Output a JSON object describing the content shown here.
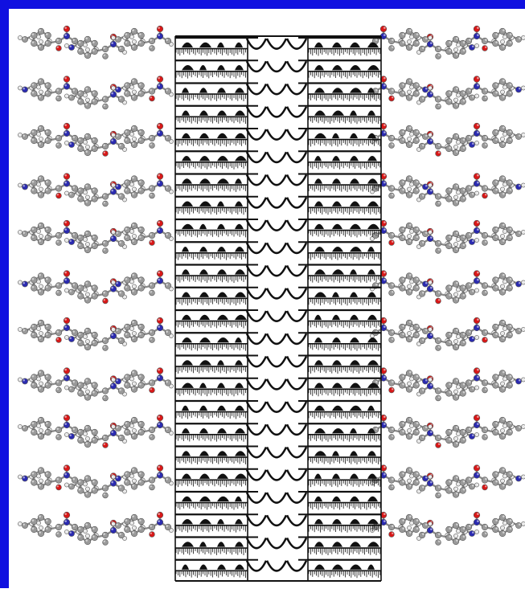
{
  "figure": {
    "frame_color": "#1010e0",
    "colors": {
      "carbon": "#9a9a9a",
      "carbon_dark": "#4a4a4a",
      "hydrogen": "#e8e8e8",
      "nitrogen": "#2b2bb0",
      "oxygen": "#d81818",
      "bond": "#8a8a8a",
      "slab": "#111111",
      "background": "#ffffff"
    },
    "left_lattice": {
      "rows": 11,
      "molecules_per_row": 3,
      "elements": [
        "C",
        "H",
        "N",
        "O"
      ]
    },
    "right_lattice": {
      "rows": 11,
      "molecules_per_row": 3,
      "elements": [
        "C",
        "H",
        "N",
        "O"
      ]
    },
    "central_slab": {
      "layers": 24,
      "description_icon": "stacked-molecular-layers"
    }
  }
}
